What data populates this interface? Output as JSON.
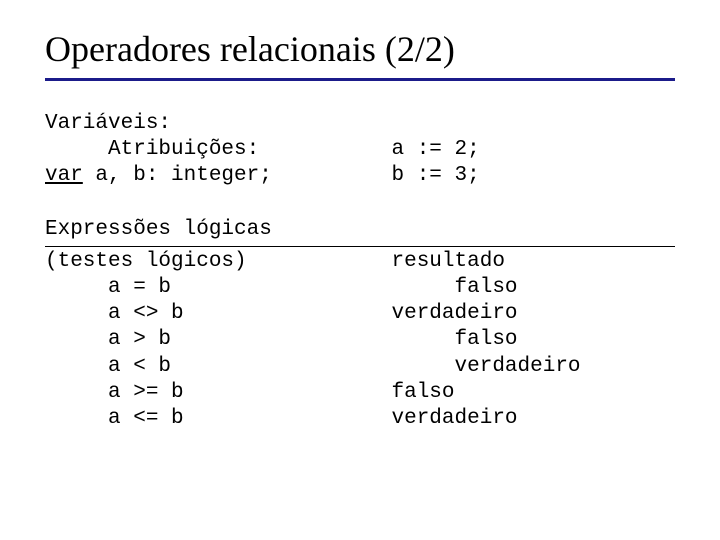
{
  "title": "Operadores relacionais (2/2)",
  "block1": {
    "left_line1": "Variáveis:",
    "left_line2": "     Atribuições:",
    "left_line3_pre": "var",
    "left_line3_post": " a, b: integer;",
    "right_line1": "a := 2;",
    "right_line2": "b := 3;"
  },
  "block2": {
    "left_header": "Expressões lógicas",
    "left_sub": "(testes lógicos)",
    "left_r1": "     a = b",
    "left_r2": "     a <> b",
    "left_r3": "     a > b",
    "left_r4": "     a < b",
    "left_r5": "     a >= b",
    "left_r6": "     a <= b",
    "right_header": "resultado",
    "right_r1": "     falso",
    "right_r2": "verdadeiro",
    "right_r3": "     falso",
    "right_r4": "     verdadeiro",
    "right_r5": "falso",
    "right_r6": "verdadeiro"
  },
  "styling": {
    "type": "document",
    "slide_size": [
      720,
      540
    ],
    "background_color": "#ffffff",
    "title_font_family": "Times New Roman",
    "title_fontsize": 36,
    "title_color": "#000000",
    "title_underline_color": "#1b1b8a",
    "title_underline_width": 3,
    "body_font_family": "Courier New",
    "body_fontsize": 21,
    "body_color": "#000000",
    "thin_rule_color": "#000000",
    "thin_rule_width": 1,
    "column_split_left_pct": 55,
    "column_split_right_pct": 45,
    "var_keyword_style": "underline"
  }
}
